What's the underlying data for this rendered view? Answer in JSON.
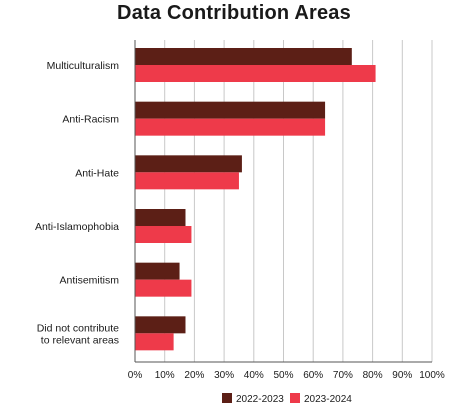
{
  "chart_data": {
    "type": "bar",
    "orientation": "horizontal",
    "title": "Data Contribution Areas",
    "categories": [
      [
        "Multiculturalism"
      ],
      [
        "Anti-Racism"
      ],
      [
        "Anti-Hate"
      ],
      [
        "Anti-Islamophobia"
      ],
      [
        "Antisemitism"
      ],
      [
        "Did not contribute",
        "to relevant areas"
      ]
    ],
    "series": [
      {
        "name": "2022-2023",
        "color": "#5c1f16",
        "values": [
          73,
          64,
          36,
          17,
          15,
          17
        ]
      },
      {
        "name": "2023-2024",
        "color": "#ee3a4a",
        "values": [
          81,
          64,
          35,
          19,
          19,
          13
        ]
      }
    ],
    "xlim": [
      0,
      100
    ],
    "x_ticks": [
      "0%",
      "10%",
      "20%",
      "30%",
      "40%",
      "50%",
      "60%",
      "70%",
      "80%",
      "90%",
      "100%"
    ],
    "grid": true,
    "legend_position": "bottom"
  }
}
